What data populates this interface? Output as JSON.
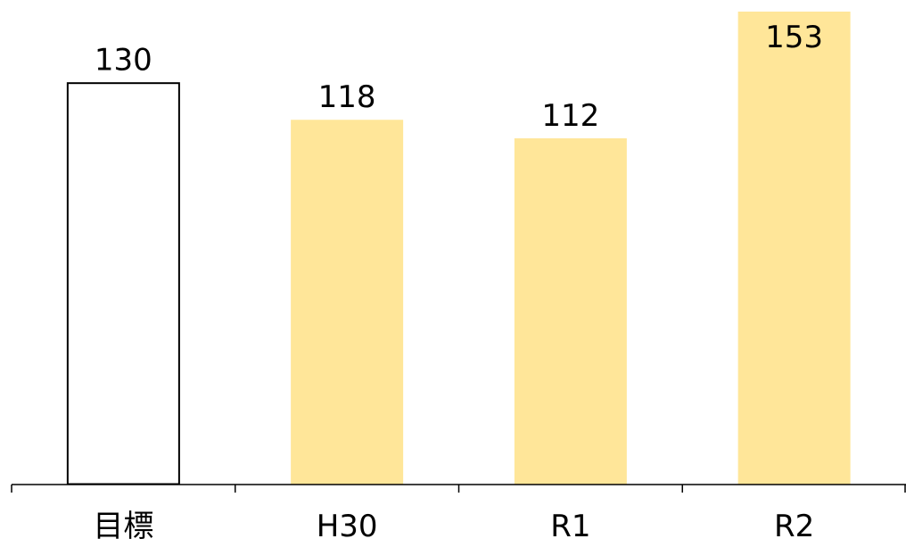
{
  "chart_data": {
    "type": "bar",
    "categories": [
      "目標",
      "H30",
      "R1",
      "R2"
    ],
    "values": [
      130,
      118,
      112,
      153
    ],
    "bar_styles": [
      {
        "fill": "#ffffff",
        "stroke": "#000000"
      },
      {
        "fill": "#ffe699",
        "stroke": "none"
      },
      {
        "fill": "#ffe699",
        "stroke": "none"
      },
      {
        "fill": "#ffe699",
        "stroke": "none"
      }
    ],
    "data_labels": [
      "130",
      "118",
      "112",
      "153"
    ],
    "title": "",
    "xlabel": "",
    "ylabel": "",
    "ylim": [
      0,
      153
    ],
    "grid": false,
    "legend": "none"
  }
}
